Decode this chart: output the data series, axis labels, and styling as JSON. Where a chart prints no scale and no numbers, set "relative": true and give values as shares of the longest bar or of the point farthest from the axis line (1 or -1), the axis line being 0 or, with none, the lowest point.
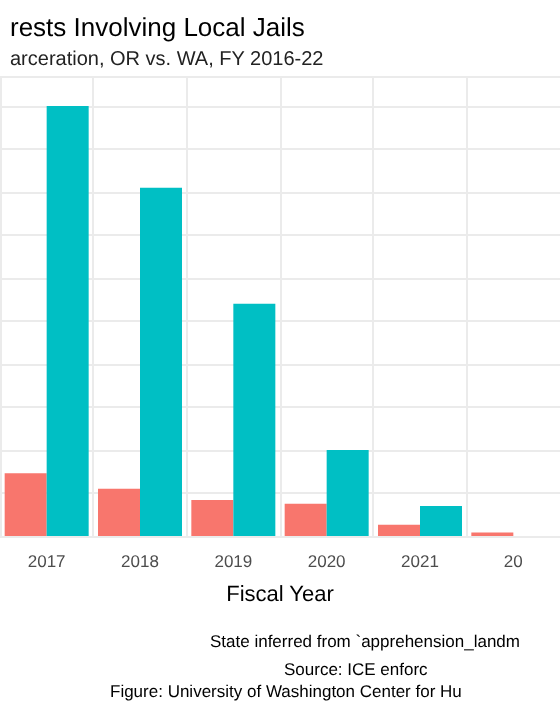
{
  "chart_data": {
    "type": "bar",
    "title": "rests Involving Local Jails",
    "subtitle": "arceration, OR vs. WA, FY 2016-22",
    "xlabel": "Fiscal Year",
    "categories": [
      "2017",
      "2018",
      "2019",
      "2020",
      "2021",
      "20"
    ],
    "series": [
      {
        "color": "#f8766d",
        "values": [
          0.146,
          0.11,
          0.084,
          0.075,
          0.026,
          0.008
        ]
      },
      {
        "color": "#00bfc4",
        "values": [
          1,
          0.81,
          0.54,
          0.2,
          0.07,
          null
        ]
      }
    ],
    "relative": true,
    "grid": true,
    "annotations": [
      "State inferred from `apprehension_landm",
      "Source: ICE enforc",
      "Figure: University of Washington Center for Hu"
    ]
  }
}
